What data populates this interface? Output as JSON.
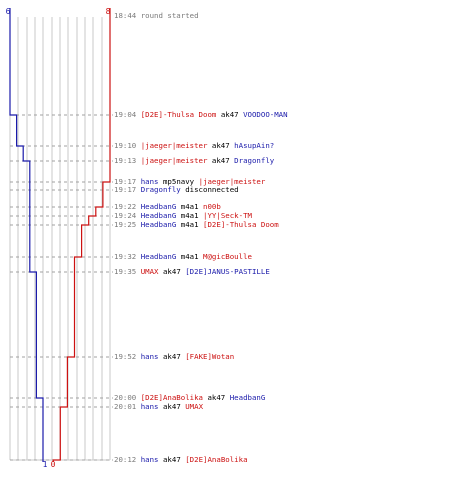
{
  "colors": {
    "blue": "#1a1aaa",
    "red": "#cc1111",
    "grid": "#c8c8c8",
    "center": "#808080",
    "time": "#7a7a7a"
  },
  "score_top": {
    "blue": "6",
    "red": "8"
  },
  "score_bottom": {
    "blue": "1",
    "red": "0"
  },
  "events": [
    {
      "time": "18:44",
      "a": "round started",
      "a_color": "grey",
      "w": "",
      "b": "",
      "b_color": ""
    },
    {
      "time": "19:04",
      "a": "[D2E]-Thulsa Doom",
      "a_color": "red",
      "w": "ak47",
      "b": "VOODOO-MAN",
      "b_color": "blue"
    },
    {
      "time": "19:10",
      "a": "|jaeger|meister",
      "a_color": "red",
      "w": "ak47",
      "b": "hAsupAin?",
      "b_color": "blue"
    },
    {
      "time": "19:13",
      "a": "|jaeger|meister",
      "a_color": "red",
      "w": "ak47",
      "b": "Dragonfly",
      "b_color": "blue"
    },
    {
      "time": "19:17",
      "a": "hans",
      "a_color": "blue",
      "w": "mp5navy",
      "b": "|jaeger|meister",
      "b_color": "red"
    },
    {
      "time": "19:17",
      "a": "Dragonfly",
      "a_color": "blue",
      "w": "disconnected",
      "b": "",
      "b_color": ""
    },
    {
      "time": "19:22",
      "a": "HeadbanG",
      "a_color": "blue",
      "w": "m4a1",
      "b": "n00b",
      "b_color": "red"
    },
    {
      "time": "19:24",
      "a": "HeadbanG",
      "a_color": "blue",
      "w": "m4a1",
      "b": "|YY|Seck-TM",
      "b_color": "red"
    },
    {
      "time": "19:25",
      "a": "HeadbanG",
      "a_color": "blue",
      "w": "m4a1",
      "b": "[D2E]-Thulsa Doom",
      "b_color": "red"
    },
    {
      "time": "19:32",
      "a": "HeadbanG",
      "a_color": "blue",
      "w": "m4a1",
      "b": "M@gicBoulle",
      "b_color": "red"
    },
    {
      "time": "19:35",
      "a": "UMAX",
      "a_color": "red",
      "w": "ak47",
      "b": "[D2E]JANUS-PASTILLE",
      "b_color": "blue"
    },
    {
      "time": "19:52",
      "a": "hans",
      "a_color": "blue",
      "w": "ak47",
      "b": "[FAKE]Wotan",
      "b_color": "red"
    },
    {
      "time": "20:00",
      "a": "[D2E]AnaBolika",
      "a_color": "red",
      "w": "ak47",
      "b": "HeadbanG",
      "b_color": "blue"
    },
    {
      "time": "20:01",
      "a": "hans",
      "a_color": "blue",
      "w": "ak47",
      "b": "UMAX",
      "b_color": "red"
    },
    {
      "time": "20:12",
      "a": "hans",
      "a_color": "blue",
      "w": "ak47",
      "b": "[D2E]AnaBolika",
      "b_color": "red"
    }
  ],
  "blue_alive": [
    6,
    5,
    4,
    3,
    3,
    3,
    3,
    3,
    3,
    3,
    2,
    2,
    1,
    1,
    1
  ],
  "red_alive": [
    8,
    8,
    8,
    8,
    7,
    7,
    6,
    5,
    4,
    3,
    3,
    2,
    2,
    1,
    0
  ]
}
